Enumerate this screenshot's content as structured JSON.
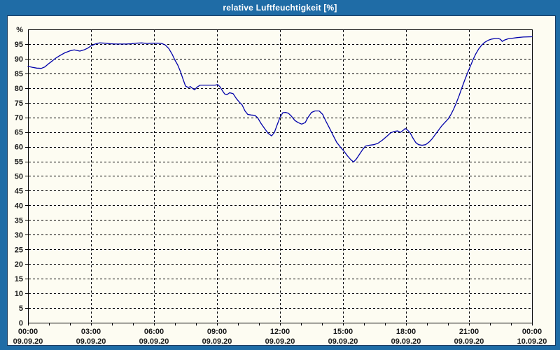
{
  "window": {
    "title": "relative Luftfeuchtigkeit [%]"
  },
  "colors": {
    "titlebar_bg": "#1F6CA6",
    "titlebar_text": "#FFFFFF",
    "window_border": "#1F6CA6",
    "inner_border": "#1B3C5F",
    "chart_bg": "#FDFCF2",
    "grid": "#000000",
    "axis": "#000000",
    "label": "#1A1A1A",
    "line": "#0000AA"
  },
  "chart_data": {
    "type": "line",
    "title": "relative Luftfeuchtigkeit [%]",
    "ylabel": "%",
    "y_unit": "%",
    "ylim": [
      0,
      100
    ],
    "y_tick_step": 5,
    "y_ticks": [
      0,
      5,
      10,
      15,
      20,
      25,
      30,
      35,
      40,
      45,
      50,
      55,
      60,
      65,
      70,
      75,
      80,
      85,
      90,
      95
    ],
    "x_unit": "time",
    "xlim_hours": [
      0,
      24
    ],
    "x_minor_tick_hours": 1,
    "grid": "dashed",
    "legend": "none",
    "x_major_ticks": [
      {
        "h": 0,
        "time": "00:00",
        "date": "09.09.20"
      },
      {
        "h": 3,
        "time": "03:00",
        "date": "09.09.20"
      },
      {
        "h": 6,
        "time": "06:00",
        "date": "09.09.20"
      },
      {
        "h": 9,
        "time": "09:00",
        "date": "09.09.20"
      },
      {
        "h": 12,
        "time": "12:00",
        "date": "09.09.20"
      },
      {
        "h": 15,
        "time": "15:00",
        "date": "09.09.20"
      },
      {
        "h": 18,
        "time": "18:00",
        "date": "09.09.20"
      },
      {
        "h": 21,
        "time": "21:00",
        "date": "09.09.20"
      },
      {
        "h": 24,
        "time": "00:00",
        "date": "10.09.20"
      }
    ],
    "series": [
      {
        "name": "relative Luftfeuchtigkeit",
        "color": "#0000AA",
        "points_minutes_percent": [
          [
            0,
            87.4
          ],
          [
            12,
            87.1
          ],
          [
            25,
            86.8
          ],
          [
            38,
            86.7
          ],
          [
            48,
            87.2
          ],
          [
            58,
            88.2
          ],
          [
            70,
            89.3
          ],
          [
            78,
            90.1
          ],
          [
            90,
            91.0
          ],
          [
            105,
            92.0
          ],
          [
            120,
            92.7
          ],
          [
            132,
            93.0
          ],
          [
            148,
            92.6
          ],
          [
            160,
            93.0
          ],
          [
            172,
            93.7
          ],
          [
            180,
            94.4
          ],
          [
            192,
            95.0
          ],
          [
            205,
            95.4
          ],
          [
            220,
            95.3
          ],
          [
            235,
            95.1
          ],
          [
            250,
            95.0
          ],
          [
            265,
            95.0
          ],
          [
            280,
            95.0
          ],
          [
            295,
            95.1
          ],
          [
            310,
            95.3
          ],
          [
            325,
            95.4
          ],
          [
            340,
            95.2
          ],
          [
            355,
            95.3
          ],
          [
            370,
            95.3
          ],
          [
            382,
            95.2
          ],
          [
            392,
            94.7
          ],
          [
            402,
            93.5
          ],
          [
            412,
            91.5
          ],
          [
            420,
            89.5
          ],
          [
            428,
            87.8
          ],
          [
            436,
            85.5
          ],
          [
            443,
            83.0
          ],
          [
            450,
            80.7
          ],
          [
            458,
            80.2
          ],
          [
            464,
            80.5
          ],
          [
            470,
            79.9
          ],
          [
            476,
            79.4
          ],
          [
            483,
            80.3
          ],
          [
            492,
            81.0
          ],
          [
            505,
            81.0
          ],
          [
            520,
            81.0
          ],
          [
            535,
            81.0
          ],
          [
            542,
            81.2
          ],
          [
            548,
            80.5
          ],
          [
            555,
            79.2
          ],
          [
            562,
            78.0
          ],
          [
            568,
            77.7
          ],
          [
            576,
            78.4
          ],
          [
            586,
            78.1
          ],
          [
            596,
            76.3
          ],
          [
            604,
            75.2
          ],
          [
            612,
            74.2
          ],
          [
            620,
            72.2
          ],
          [
            628,
            71.0
          ],
          [
            638,
            70.8
          ],
          [
            648,
            70.7
          ],
          [
            656,
            69.9
          ],
          [
            666,
            67.9
          ],
          [
            676,
            66.2
          ],
          [
            686,
            64.6
          ],
          [
            696,
            63.7
          ],
          [
            704,
            64.9
          ],
          [
            712,
            67.5
          ],
          [
            720,
            70.0
          ],
          [
            728,
            71.6
          ],
          [
            736,
            71.7
          ],
          [
            744,
            71.4
          ],
          [
            752,
            70.5
          ],
          [
            762,
            69.0
          ],
          [
            772,
            68.2
          ],
          [
            782,
            67.7
          ],
          [
            792,
            68.2
          ],
          [
            800,
            70.0
          ],
          [
            810,
            71.7
          ],
          [
            820,
            72.2
          ],
          [
            832,
            72.2
          ],
          [
            842,
            71.0
          ],
          [
            852,
            68.5
          ],
          [
            862,
            66.2
          ],
          [
            872,
            63.8
          ],
          [
            882,
            61.5
          ],
          [
            893,
            59.8
          ],
          [
            902,
            58.6
          ],
          [
            912,
            57.0
          ],
          [
            922,
            55.6
          ],
          [
            930,
            54.8
          ],
          [
            938,
            55.8
          ],
          [
            946,
            57.2
          ],
          [
            956,
            59.0
          ],
          [
            964,
            60.2
          ],
          [
            975,
            60.5
          ],
          [
            988,
            60.7
          ],
          [
            1000,
            61.2
          ],
          [
            1012,
            62.2
          ],
          [
            1025,
            63.5
          ],
          [
            1036,
            64.7
          ],
          [
            1046,
            65.2
          ],
          [
            1056,
            65.4
          ],
          [
            1064,
            64.9
          ],
          [
            1072,
            65.6
          ],
          [
            1078,
            66.2
          ],
          [
            1084,
            65.7
          ],
          [
            1092,
            64.7
          ],
          [
            1100,
            62.9
          ],
          [
            1108,
            61.4
          ],
          [
            1116,
            60.7
          ],
          [
            1126,
            60.5
          ],
          [
            1136,
            60.7
          ],
          [
            1146,
            61.6
          ],
          [
            1154,
            62.6
          ],
          [
            1162,
            63.9
          ],
          [
            1172,
            65.5
          ],
          [
            1182,
            67.1
          ],
          [
            1192,
            68.4
          ],
          [
            1200,
            69.4
          ],
          [
            1208,
            70.9
          ],
          [
            1216,
            72.8
          ],
          [
            1224,
            75.0
          ],
          [
            1232,
            77.5
          ],
          [
            1240,
            80.2
          ],
          [
            1248,
            82.8
          ],
          [
            1256,
            85.2
          ],
          [
            1264,
            87.5
          ],
          [
            1272,
            89.8
          ],
          [
            1280,
            91.8
          ],
          [
            1288,
            93.4
          ],
          [
            1296,
            94.6
          ],
          [
            1305,
            95.6
          ],
          [
            1315,
            96.3
          ],
          [
            1325,
            96.7
          ],
          [
            1335,
            96.9
          ],
          [
            1344,
            96.9
          ],
          [
            1350,
            96.6
          ],
          [
            1355,
            95.9
          ],
          [
            1362,
            96.4
          ],
          [
            1372,
            96.8
          ],
          [
            1384,
            97.0
          ],
          [
            1398,
            97.2
          ],
          [
            1415,
            97.4
          ],
          [
            1440,
            97.5
          ]
        ]
      }
    ]
  }
}
